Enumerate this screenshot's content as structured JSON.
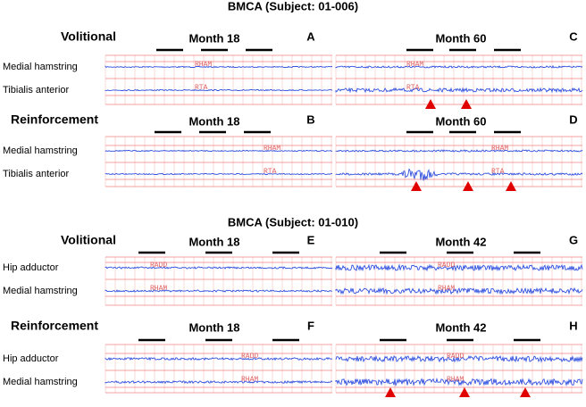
{
  "figures": [
    {
      "title": "BMCA (Subject: 01-006)",
      "rows": [
        {
          "condition": "Volitional",
          "labels": [
            "Medial hamstring",
            "Tibialis anterior"
          ],
          "traces": [
            "RHAM",
            "RTA"
          ],
          "panels": [
            {
              "month": "Month 18",
              "letter": "A"
            },
            {
              "month": "Month 60",
              "letter": "C"
            }
          ]
        },
        {
          "condition": "Reinforcement",
          "labels": [
            "Medial hamstring",
            "Tibialis anterior"
          ],
          "traces": [
            "RHAM",
            "RTA"
          ],
          "panels": [
            {
              "month": "Month 18",
              "letter": "B"
            },
            {
              "month": "Month 60",
              "letter": "D"
            }
          ]
        }
      ]
    },
    {
      "title": "BMCA (Subject: 01-010)",
      "rows": [
        {
          "condition": "Volitional",
          "labels": [
            "Hip adductor",
            "Medial hamstring"
          ],
          "traces": [
            "RADD",
            "RHAM"
          ],
          "panels": [
            {
              "month": "Month 18",
              "letter": "E"
            },
            {
              "month": "Month 42",
              "letter": "G"
            }
          ]
        },
        {
          "condition": "Reinforcement",
          "labels": [
            "Hip adductor",
            "Medial hamstring"
          ],
          "traces": [
            "RADD",
            "RHAM"
          ],
          "panels": [
            {
              "month": "Month 18",
              "letter": "F"
            },
            {
              "month": "Month 42",
              "letter": "H"
            }
          ]
        }
      ]
    }
  ]
}
